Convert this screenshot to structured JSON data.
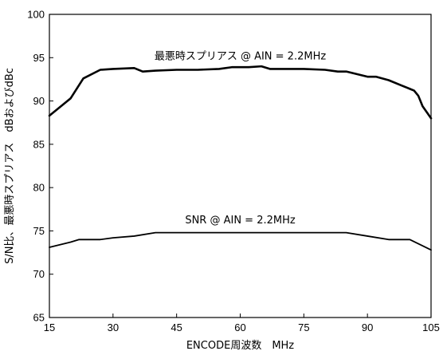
{
  "chart_data": {
    "type": "line",
    "xlabel": "ENCODE周波数　MHz",
    "ylabel": "S/N比、最悪時スプリアス　dBおよびdBc",
    "xlim": [
      15,
      105
    ],
    "ylim": [
      65,
      100
    ],
    "xticks": [
      15,
      30,
      45,
      60,
      75,
      90,
      105
    ],
    "yticks": [
      65,
      70,
      75,
      80,
      85,
      90,
      95,
      100
    ],
    "grid": false,
    "series": [
      {
        "name": "最悪時スプリアス @ AIN = 2.2MHz",
        "x": [
          15,
          20,
          23,
          27,
          30,
          35,
          37,
          40,
          45,
          50,
          55,
          58,
          62,
          65,
          67,
          70,
          75,
          80,
          83,
          85,
          90,
          92,
          95,
          98,
          100,
          101,
          102,
          103,
          105
        ],
        "y": [
          88.3,
          90.3,
          92.6,
          93.6,
          93.7,
          93.8,
          93.4,
          93.5,
          93.6,
          93.6,
          93.7,
          93.9,
          93.9,
          94.0,
          93.7,
          93.7,
          93.7,
          93.6,
          93.4,
          93.4,
          92.8,
          92.8,
          92.4,
          91.8,
          91.4,
          91.2,
          90.6,
          89.4,
          88.0
        ]
      },
      {
        "name": "SNR @ AIN = 2.2MHz",
        "x": [
          15,
          20,
          22,
          27,
          30,
          35,
          40,
          45,
          50,
          55,
          60,
          65,
          70,
          75,
          80,
          85,
          90,
          95,
          100,
          105
        ],
        "y": [
          73.1,
          73.7,
          74.0,
          74.0,
          74.2,
          74.4,
          74.8,
          74.8,
          74.8,
          74.8,
          74.8,
          74.8,
          74.8,
          74.8,
          74.8,
          74.8,
          74.4,
          74.0,
          74.0,
          72.8
        ]
      }
    ],
    "annotations": [
      {
        "text": "最悪時スプリアス @ AIN = 2.2MHz",
        "x": 60,
        "y": 95.2
      },
      {
        "text": "SNR @ AIN = 2.2MHz",
        "x": 60,
        "y": 76.3
      }
    ]
  }
}
